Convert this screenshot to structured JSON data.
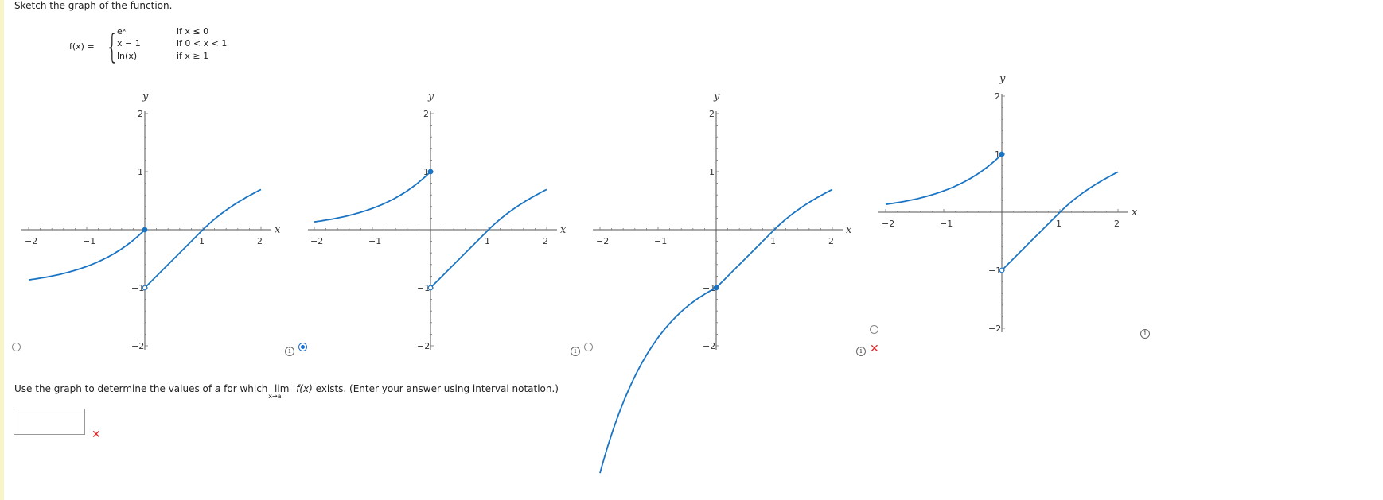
{
  "question": {
    "prompt": "Sketch the graph of the function.",
    "function_name": "f(x) =",
    "pieces": [
      {
        "expr": "eˣ",
        "cond": "if x ≤ 0"
      },
      {
        "expr": "x − 1",
        "cond": "if 0 < x < 1"
      },
      {
        "expr": "ln(x)",
        "cond": "if x ≥ 1"
      }
    ]
  },
  "options": [
    {
      "selected": false,
      "feedback": "none"
    },
    {
      "selected": true,
      "feedback": "none"
    },
    {
      "selected": false,
      "feedback": "none"
    },
    {
      "selected": false,
      "feedback": "incorrect"
    }
  ],
  "graph_labels": {
    "x_axis": "x",
    "y_axis": "y"
  },
  "tick_labels": {
    "x": [
      "−2",
      "−1",
      "1",
      "2"
    ],
    "y": [
      "2",
      "1",
      "−1",
      "−2"
    ]
  },
  "part2": {
    "text_before": "Use the graph to determine the values of",
    "variable": "a",
    "text_mid": "for which",
    "lim_word": "lim",
    "lim_sub": "x→a",
    "lim_fn": "f(x)",
    "text_after": "exists. (Enter your answer using interval notation.)",
    "answer_value": "",
    "answer_status": "incorrect"
  },
  "chart_data": [
    {
      "type": "line",
      "series": [
        {
          "values": "e^x, x≤0"
        },
        {
          "values": "x−1, 0<x<1"
        },
        {
          "values": "ln(x), x≥1"
        }
      ],
      "xlim": [
        -2,
        2
      ],
      "ylim": [
        -2,
        2
      ]
    },
    {
      "type": "line",
      "series": [
        {
          "values": "e^x, x≤0"
        },
        {
          "values": "x−1, 0<x<1"
        },
        {
          "values": "ln(x), x≥1"
        }
      ],
      "xlim": [
        -2,
        2
      ],
      "ylim": [
        -2,
        2
      ]
    },
    {
      "type": "line",
      "series": [
        {
          "values": "mirrored e^x, x≤0"
        },
        {
          "values": "x−1, 0<x<1"
        },
        {
          "values": "ln(x), x≥1"
        }
      ],
      "xlim": [
        -2,
        2
      ],
      "ylim": [
        -2,
        2
      ]
    },
    {
      "type": "line",
      "series": [
        {
          "values": "e^x, x≤0"
        },
        {
          "values": "x−1, 0<x<1"
        },
        {
          "values": "ln(x), x≥1"
        }
      ],
      "xlim": [
        -2,
        2
      ],
      "ylim": [
        -2,
        2
      ]
    }
  ],
  "colors": {
    "curve": "#1a74c4",
    "error": "#e3262a",
    "selected": "#1a6fd1"
  }
}
